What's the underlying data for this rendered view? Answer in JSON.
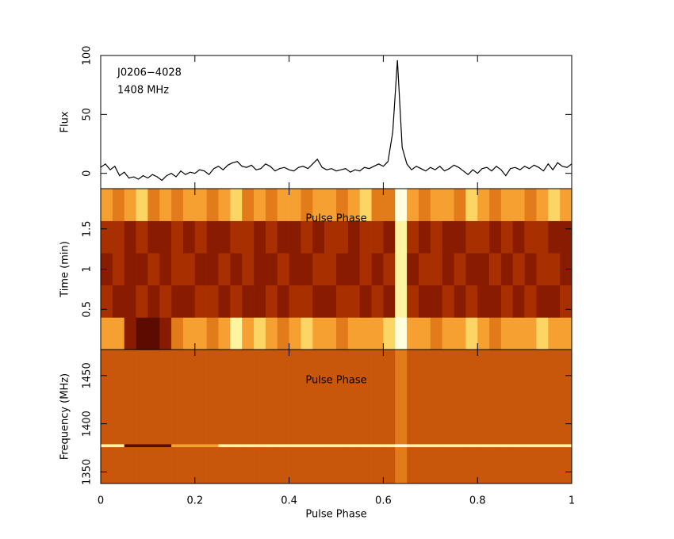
{
  "chart_data": [
    {
      "type": "line",
      "title": "J0206−4028",
      "subtitle": "1408 MHz",
      "y_label": "Flux",
      "color": "#000000",
      "x": [
        0,
        0.01,
        0.02,
        0.03,
        0.04,
        0.05,
        0.06,
        0.07,
        0.08,
        0.09,
        0.1,
        0.11,
        0.12,
        0.13,
        0.14,
        0.15,
        0.16,
        0.17,
        0.18,
        0.19,
        0.2,
        0.21,
        0.22,
        0.23,
        0.24,
        0.25,
        0.26,
        0.27,
        0.28,
        0.29,
        0.3,
        0.31,
        0.32,
        0.33,
        0.34,
        0.35,
        0.36,
        0.37,
        0.38,
        0.39,
        0.4,
        0.41,
        0.42,
        0.43,
        0.44,
        0.45,
        0.46,
        0.47,
        0.48,
        0.49,
        0.5,
        0.51,
        0.52,
        0.53,
        0.54,
        0.55,
        0.56,
        0.57,
        0.58,
        0.59,
        0.6,
        0.61,
        0.62,
        0.63,
        0.64,
        0.65,
        0.66,
        0.67,
        0.68,
        0.69,
        0.7,
        0.71,
        0.72,
        0.73,
        0.74,
        0.75,
        0.76,
        0.77,
        0.78,
        0.79,
        0.8,
        0.81,
        0.82,
        0.83,
        0.84,
        0.85,
        0.86,
        0.87,
        0.88,
        0.89,
        0.9,
        0.91,
        0.92,
        0.93,
        0.94,
        0.95,
        0.96,
        0.97,
        0.98,
        0.99,
        1
      ],
      "values": [
        5,
        8,
        3,
        6,
        -2,
        1,
        -4,
        -3,
        -5,
        -2,
        -4,
        -1,
        -3,
        -6,
        -2,
        0,
        -3,
        2,
        -1,
        1,
        0,
        3,
        2,
        -1,
        4,
        6,
        3,
        7,
        9,
        10,
        6,
        5,
        7,
        3,
        4,
        8,
        6,
        2,
        4,
        5,
        3,
        2,
        5,
        6,
        4,
        8,
        12,
        5,
        3,
        4,
        2,
        3,
        4,
        1,
        3,
        2,
        5,
        4,
        6,
        8,
        6,
        10,
        35,
        96,
        22,
        8,
        3,
        6,
        4,
        2,
        5,
        3,
        6,
        2,
        4,
        7,
        5,
        2,
        -1,
        3,
        0,
        4,
        5,
        2,
        6,
        3,
        -2,
        4,
        5,
        3,
        6,
        4,
        7,
        5,
        2,
        8,
        3,
        9,
        6,
        5,
        8
      ],
      "xlim": [
        0,
        1
      ],
      "ylim": [
        -13,
        100
      ],
      "yticks": [
        0,
        50,
        100
      ]
    },
    {
      "type": "heatmap",
      "annotation": "Pulse Phase",
      "y_label": "Time (min)",
      "xlim": [
        0,
        1
      ],
      "ylim": [
        0,
        2
      ],
      "yticks": [
        0.5,
        1,
        1.5
      ],
      "y_edges": [
        0,
        0.4,
        0.8,
        1.2,
        1.6,
        2.0
      ],
      "zlim": [
        0,
        9
      ],
      "colormap": [
        "#200000",
        "#7a1000",
        "#a83000",
        "#d86a10",
        "#f5a030",
        "#fff080",
        "#ffffe0"
      ],
      "z": [
        [
          6,
          6,
          2,
          1,
          1,
          2,
          5,
          6,
          6,
          5,
          6,
          8,
          6,
          7,
          6,
          5,
          6,
          7,
          6,
          6,
          5,
          6,
          6,
          6,
          7,
          9,
          6,
          6,
          5,
          6,
          6,
          7,
          6,
          5,
          6,
          6,
          6,
          7,
          6,
          6
        ],
        [
          3,
          2,
          2,
          3,
          2,
          3,
          2,
          2,
          3,
          3,
          2,
          3,
          2,
          2,
          3,
          2,
          3,
          3,
          2,
          2,
          3,
          3,
          2,
          3,
          2,
          8,
          3,
          2,
          2,
          3,
          2,
          3,
          2,
          2,
          3,
          2,
          3,
          2,
          2,
          3
        ],
        [
          2,
          3,
          2,
          2,
          3,
          2,
          3,
          3,
          2,
          2,
          3,
          2,
          3,
          2,
          2,
          3,
          2,
          2,
          3,
          3,
          2,
          2,
          3,
          2,
          3,
          8,
          2,
          3,
          3,
          2,
          3,
          2,
          2,
          3,
          2,
          3,
          2,
          3,
          3,
          2
        ],
        [
          3,
          3,
          2,
          3,
          2,
          2,
          3,
          2,
          3,
          2,
          2,
          3,
          3,
          2,
          3,
          2,
          2,
          3,
          2,
          3,
          3,
          2,
          3,
          3,
          2,
          8,
          3,
          2,
          3,
          2,
          2,
          3,
          3,
          2,
          3,
          2,
          3,
          3,
          2,
          2
        ],
        [
          6,
          5,
          6,
          7,
          5,
          6,
          5,
          6,
          6,
          5,
          6,
          7,
          5,
          6,
          5,
          6,
          6,
          5,
          6,
          6,
          5,
          6,
          7,
          5,
          5,
          9,
          6,
          5,
          6,
          6,
          5,
          7,
          6,
          5,
          6,
          6,
          5,
          6,
          7,
          6
        ]
      ]
    },
    {
      "type": "heatmap",
      "annotation": "Pulse Phase",
      "y_label": "Frequency (MHz)",
      "x_label": "Pulse Phase",
      "xlim": [
        0,
        1
      ],
      "ylim": [
        1338,
        1477
      ],
      "yticks": [
        1350,
        1400,
        1450
      ],
      "xticks": [
        0,
        0.2,
        0.4,
        0.6,
        0.8,
        1
      ],
      "y_edges": [
        1338,
        1376,
        1379,
        1477
      ],
      "zlim": [
        0,
        9
      ],
      "colormap": [
        "#200000",
        "#7a1000",
        "#a83000",
        "#d86a10",
        "#f5a030",
        "#fff080",
        "#ffffe0"
      ],
      "z": [
        [
          4,
          4,
          4,
          4,
          4,
          4,
          4,
          4,
          4,
          4,
          4,
          4,
          4,
          4,
          4,
          4,
          4,
          4,
          4,
          4,
          4,
          4,
          4,
          4,
          4,
          5,
          4,
          4,
          4,
          4,
          4,
          4,
          4,
          4,
          4,
          4,
          4,
          4,
          4,
          4
        ],
        [
          8,
          8,
          1,
          1,
          1,
          1,
          6,
          6,
          6,
          6,
          8,
          8,
          8,
          8,
          8,
          8,
          8,
          8,
          8,
          8,
          8,
          8,
          8,
          8,
          8,
          9,
          8,
          8,
          8,
          8,
          8,
          8,
          8,
          8,
          8,
          8,
          8,
          8,
          8,
          8
        ],
        [
          4,
          4,
          4,
          4,
          4,
          4,
          4,
          4,
          4,
          4,
          4,
          4,
          4,
          4,
          4,
          4,
          4,
          4,
          4,
          4,
          4,
          4,
          4,
          4,
          4,
          5,
          4,
          4,
          4,
          4,
          4,
          4,
          4,
          4,
          4,
          4,
          4,
          4,
          4,
          4
        ]
      ]
    }
  ]
}
